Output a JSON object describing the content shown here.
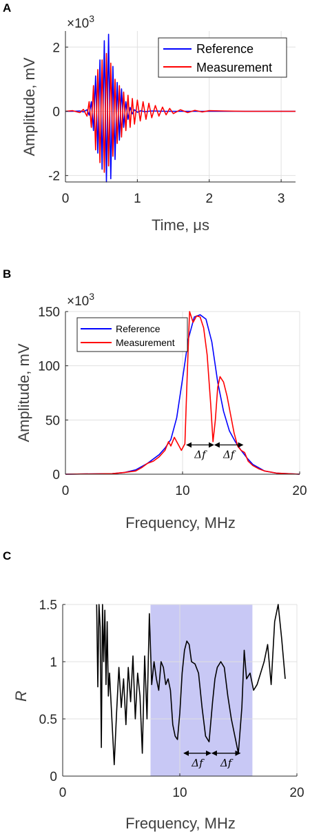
{
  "chart_data": [
    {
      "panel": "A",
      "type": "line",
      "xlabel": "Time, μs",
      "ylabel": "Amplitude, mV",
      "y_exponent": "×10",
      "y_exponent_power": "3",
      "xlim": [
        0,
        3.2
      ],
      "ylim": [
        -2.2,
        2.5
      ],
      "xticks": [
        0,
        1,
        2,
        3
      ],
      "xtick_labels": [
        "0",
        "1",
        "2",
        "3"
      ],
      "yticks": [
        -2,
        0,
        2
      ],
      "ytick_labels": [
        "-2",
        "0",
        "2"
      ],
      "grid": true,
      "legend_position": "top-right",
      "series": [
        {
          "name": "Reference",
          "color": "#0000ff",
          "x": [
            0,
            0.1,
            0.2,
            0.25,
            0.3,
            0.33,
            0.36,
            0.39,
            0.42,
            0.45,
            0.48,
            0.51,
            0.54,
            0.57,
            0.6,
            0.63,
            0.66,
            0.69,
            0.72,
            0.75,
            0.78,
            0.81,
            0.84,
            0.87,
            0.9,
            0.93,
            0.96,
            1.0,
            1.05,
            1.1,
            1.2,
            1.4,
            1.7,
            2.0,
            2.5,
            3.2
          ],
          "y": [
            0,
            0,
            0.01,
            -0.02,
            0.05,
            -0.12,
            0.3,
            -0.6,
            1.1,
            -1.3,
            1.6,
            -1.8,
            2.2,
            -2.2,
            2.4,
            -2.1,
            1.4,
            -1.5,
            0.9,
            -0.9,
            0.7,
            -0.5,
            0.3,
            -0.25,
            0.12,
            -0.08,
            0.05,
            -0.03,
            0.02,
            -0.01,
            0.01,
            0,
            0,
            0,
            0,
            0
          ]
        },
        {
          "name": "Measurement",
          "color": "#ff0000",
          "x": [
            0,
            0.1,
            0.2,
            0.25,
            0.3,
            0.33,
            0.36,
            0.39,
            0.42,
            0.45,
            0.48,
            0.51,
            0.54,
            0.57,
            0.6,
            0.63,
            0.66,
            0.69,
            0.72,
            0.75,
            0.78,
            0.81,
            0.84,
            0.87,
            0.9,
            0.93,
            0.96,
            1.0,
            1.04,
            1.08,
            1.12,
            1.16,
            1.2,
            1.25,
            1.3,
            1.35,
            1.4,
            1.45,
            1.5,
            1.6,
            1.7,
            1.8,
            1.9,
            2.0,
            2.2,
            2.5,
            3.2
          ],
          "y": [
            0,
            0.02,
            -0.04,
            0.06,
            -0.15,
            0.3,
            -0.5,
            0.8,
            -1.2,
            1.3,
            -1.6,
            1.6,
            -1.9,
            1.8,
            -1.7,
            1.5,
            -1.4,
            1.0,
            -1.0,
            0.8,
            -0.8,
            0.6,
            -0.6,
            0.5,
            -0.5,
            0.4,
            -0.4,
            0.35,
            -0.3,
            0.3,
            -0.25,
            0.25,
            -0.2,
            0.18,
            -0.15,
            0.13,
            -0.11,
            0.09,
            -0.07,
            0.05,
            -0.04,
            0.03,
            -0.02,
            0.02,
            0.01,
            0,
            0
          ]
        }
      ]
    },
    {
      "panel": "B",
      "type": "line",
      "xlabel": "Frequency, MHz",
      "ylabel": "Amplitude, mV",
      "y_exponent": "×10",
      "y_exponent_power": "3",
      "xlim": [
        0,
        20
      ],
      "ylim": [
        0,
        150
      ],
      "xticks": [
        0,
        10,
        20
      ],
      "xtick_labels": [
        "0",
        "10",
        "20"
      ],
      "yticks": [
        0,
        50,
        100,
        150
      ],
      "ytick_labels": [
        "0",
        "50",
        "100",
        "150"
      ],
      "grid": true,
      "legend_position": "top-left",
      "annotations": [
        {
          "text": "Δf",
          "x_from": 10.3,
          "x_to": 12.7,
          "y": 27
        },
        {
          "text": "Δf",
          "x_from": 12.7,
          "x_to": 15.2,
          "y": 27
        }
      ],
      "series": [
        {
          "name": "Reference",
          "color": "#0000ff",
          "x": [
            0,
            4,
            5,
            6,
            7,
            8,
            8.5,
            9,
            9.5,
            10,
            10.5,
            11,
            11.5,
            12,
            12.5,
            13,
            13.5,
            14,
            14.5,
            15,
            15.5,
            16,
            17,
            18,
            20
          ],
          "y": [
            0,
            0.5,
            1.5,
            4,
            10,
            18,
            24,
            32,
            52,
            88,
            125,
            145,
            147,
            143,
            122,
            85,
            58,
            40,
            30,
            22,
            15,
            9,
            3,
            1,
            0
          ]
        },
        {
          "name": "Measurement",
          "color": "#ff0000",
          "x": [
            0,
            4,
            5,
            6,
            6.5,
            7,
            7.5,
            8,
            8.5,
            8.8,
            9,
            9.3,
            9.6,
            9.9,
            10.2,
            10.4,
            10.6,
            10.9,
            11.2,
            11.5,
            11.8,
            12.1,
            12.4,
            12.6,
            12.8,
            13.0,
            13.2,
            13.5,
            13.8,
            14.1,
            14.4,
            14.7,
            15.0,
            15.3,
            15.6,
            16,
            16.5,
            17,
            18,
            20
          ],
          "y": [
            0,
            0.5,
            1.5,
            3,
            6,
            10,
            12,
            16,
            22,
            30,
            26,
            34,
            28,
            22,
            28,
            92,
            150,
            140,
            146,
            145,
            135,
            110,
            65,
            30,
            50,
            80,
            90,
            85,
            72,
            55,
            38,
            26,
            22,
            20,
            12,
            8,
            5,
            3,
            1,
            0
          ]
        }
      ]
    },
    {
      "panel": "C",
      "type": "line",
      "xlabel": "Frequency, MHz",
      "ylabel": "R",
      "xlim": [
        0,
        20
      ],
      "ylim": [
        0,
        1.5
      ],
      "xticks": [
        0,
        10,
        20
      ],
      "xtick_labels": [
        "0",
        "10",
        "20"
      ],
      "yticks": [
        0,
        0.5,
        1,
        1.5
      ],
      "ytick_labels": [
        "0",
        "0.5",
        "1",
        "1.5"
      ],
      "grid": true,
      "shaded_region": {
        "x_from": 7.5,
        "x_to": 16.2,
        "color": "#c8c8f5"
      },
      "annotations": [
        {
          "text": "Δf",
          "x_from": 10.3,
          "x_to": 12.7,
          "y": 0.2
        },
        {
          "text": "Δf",
          "x_from": 12.7,
          "x_to": 15.2,
          "y": 0.2
        }
      ],
      "series": [
        {
          "color": "#000000",
          "x": [
            2.9,
            3.0,
            3.1,
            3.2,
            3.3,
            3.4,
            3.5,
            3.6,
            3.7,
            3.8,
            3.9,
            4.0,
            4.2,
            4.4,
            4.6,
            4.8,
            5.0,
            5.2,
            5.4,
            5.6,
            5.8,
            6.0,
            6.2,
            6.4,
            6.6,
            6.8,
            7.0,
            7.2,
            7.4,
            7.6,
            7.8,
            8.0,
            8.2,
            8.4,
            8.6,
            8.8,
            9.0,
            9.2,
            9.4,
            9.6,
            9.8,
            10.0,
            10.2,
            10.4,
            10.6,
            10.8,
            11.0,
            11.3,
            11.6,
            11.9,
            12.2,
            12.5,
            12.8,
            13.0,
            13.2,
            13.5,
            13.8,
            14.1,
            14.4,
            14.7,
            15.0,
            15.3,
            15.5,
            15.7,
            16.0,
            16.3,
            16.6,
            16.9,
            17.2,
            17.5,
            17.8,
            18.1,
            18.4,
            18.7,
            19.0
          ],
          "y": [
            1.5,
            0.78,
            1.5,
            1.3,
            0.25,
            1.5,
            1.0,
            1.45,
            0.8,
            1.35,
            0.7,
            0.9,
            0.5,
            0.1,
            0.55,
            0.95,
            0.6,
            0.85,
            0.45,
            0.95,
            0.65,
            1.05,
            0.5,
            0.9,
            0.7,
            0.2,
            1.05,
            0.5,
            1.42,
            0.8,
            1.0,
            0.85,
            0.75,
            1.0,
            0.95,
            0.8,
            0.85,
            0.75,
            0.45,
            0.35,
            0.32,
            0.55,
            0.9,
            1.1,
            1.18,
            1.15,
            1.0,
            0.98,
            0.9,
            0.6,
            0.35,
            0.3,
            0.65,
            0.85,
            0.95,
            1.0,
            0.95,
            0.7,
            0.5,
            0.35,
            0.2,
            0.6,
            1.1,
            0.85,
            0.9,
            0.75,
            0.8,
            0.9,
            1.0,
            1.15,
            0.8,
            1.35,
            1.5,
            1.2,
            0.85
          ]
        }
      ]
    }
  ]
}
